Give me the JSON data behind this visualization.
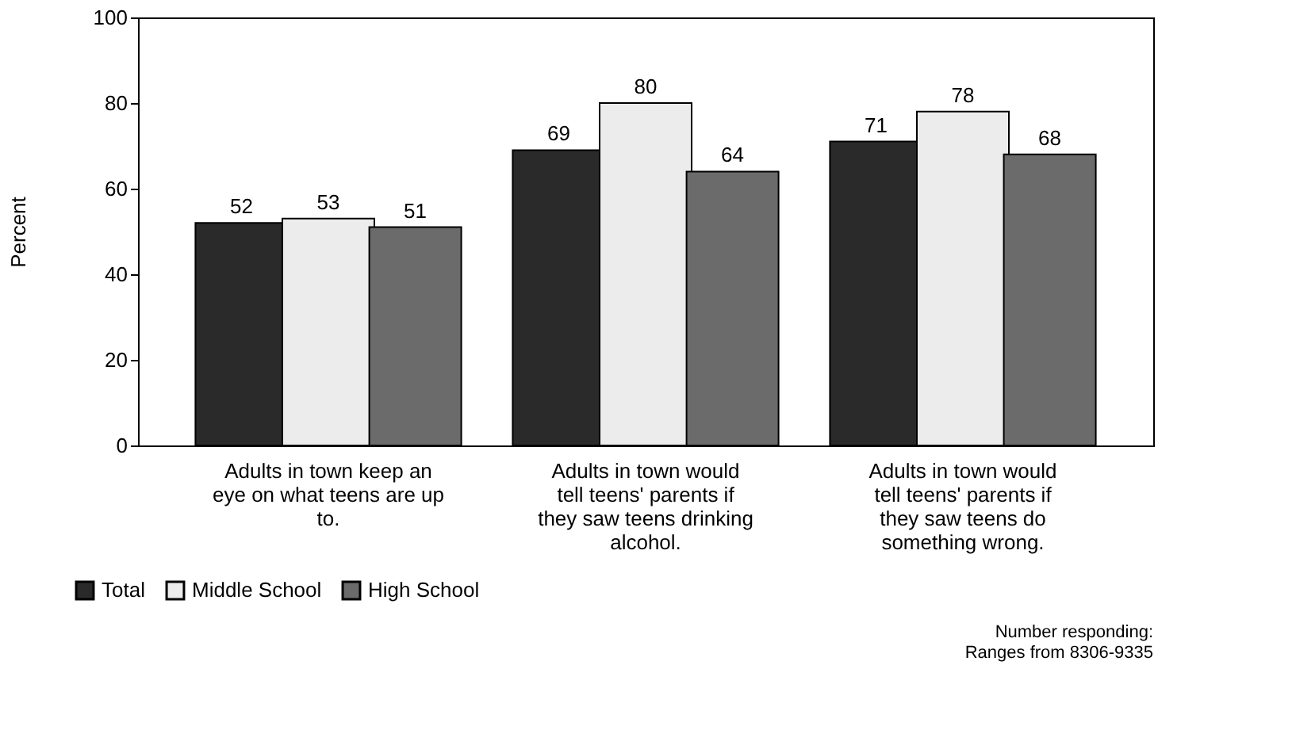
{
  "chart_data": {
    "type": "bar",
    "ylabel": "Percent",
    "categories": [
      "Adults in town keep an eye on what teens are up to.",
      "Adults in town would tell teens' parents if they saw teens drinking alcohol.",
      "Adults in town would tell teens' parents if they saw teens do something wrong."
    ],
    "series": [
      {
        "name": "Total",
        "color": "#2a2a2a",
        "values": [
          52,
          69,
          71
        ]
      },
      {
        "name": "Middle School",
        "color": "#ececec",
        "values": [
          53,
          80,
          78
        ]
      },
      {
        "name": "High School",
        "color": "#6b6b6b",
        "values": [
          51,
          64,
          68
        ]
      }
    ],
    "ylim": [
      0,
      100
    ],
    "yticks": [
      0,
      20,
      40,
      60,
      80,
      100
    ],
    "data_labels": true,
    "legend": "bottom left",
    "grid": false,
    "annotations": [
      "Number responding: Ranges from 8306-9335"
    ]
  }
}
